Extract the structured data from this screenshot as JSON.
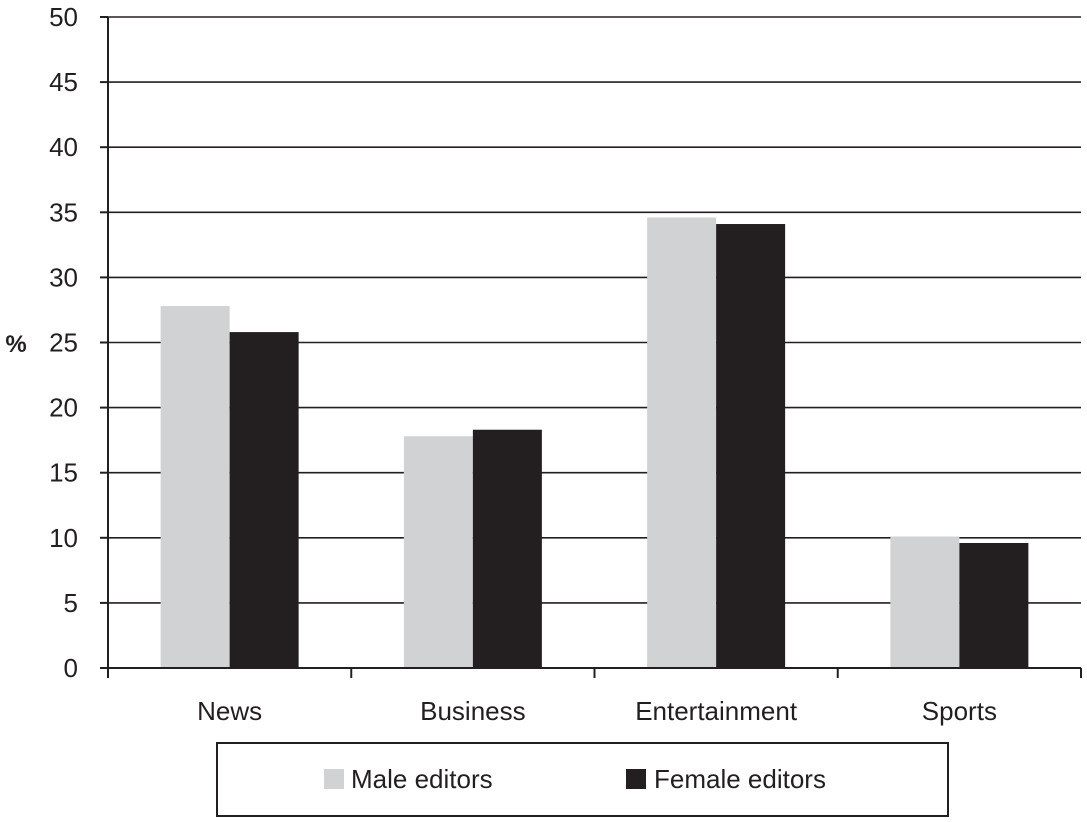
{
  "chart_data": {
    "type": "bar",
    "title": "",
    "xlabel": "",
    "ylabel": "%",
    "ylim": [
      0,
      50
    ],
    "yticks": [
      0,
      5,
      10,
      15,
      20,
      25,
      30,
      35,
      40,
      45,
      50
    ],
    "grid": true,
    "legend_position": "bottom",
    "categories": [
      "News",
      "Business",
      "Entertainment",
      "Sports"
    ],
    "series": [
      {
        "name": "Male editors",
        "color": "#d1d2d4",
        "values": [
          27.8,
          17.8,
          34.6,
          10.1
        ]
      },
      {
        "name": "Female editors",
        "color": "#231f20",
        "values": [
          25.8,
          18.3,
          34.1,
          9.6
        ]
      }
    ]
  }
}
